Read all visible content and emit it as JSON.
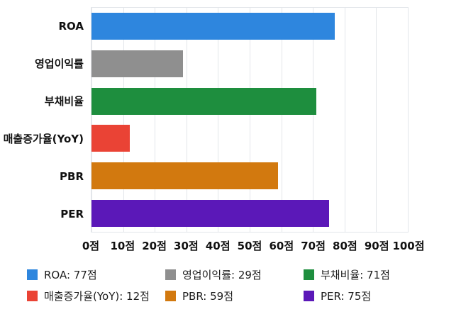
{
  "chart_data": {
    "type": "bar",
    "orientation": "horizontal",
    "title": "",
    "unit": "점",
    "categories": [
      "ROA",
      "영업이익률",
      "부채비율",
      "매출증가율(YoY)",
      "PBR",
      "PER"
    ],
    "values": [
      77,
      29,
      71,
      12,
      59,
      75
    ],
    "colors": [
      "#2e86de",
      "#8f8f8f",
      "#1e8e3e",
      "#ea4335",
      "#d2790f",
      "#5b18b8"
    ],
    "xlim": [
      0,
      100
    ],
    "x_ticks": [
      0,
      10,
      20,
      30,
      40,
      50,
      60,
      70,
      80,
      90,
      100
    ],
    "x_tick_labels": [
      "0점",
      "10점",
      "20점",
      "30점",
      "40점",
      "50점",
      "60점",
      "70점",
      "80점",
      "90점",
      "100점"
    ],
    "grid": "vertical",
    "legend_position": "bottom"
  },
  "legend": {
    "items": [
      {
        "label": "ROA: 77점",
        "color": "#2e86de"
      },
      {
        "label": "영업이익률: 29점",
        "color": "#8f8f8f"
      },
      {
        "label": "부채비율: 71점",
        "color": "#1e8e3e"
      },
      {
        "label": "매출증가율(YoY): 12점",
        "color": "#ea4335"
      },
      {
        "label": "PBR: 59점",
        "color": "#d2790f"
      },
      {
        "label": "PER: 75점",
        "color": "#5b18b8"
      }
    ]
  }
}
